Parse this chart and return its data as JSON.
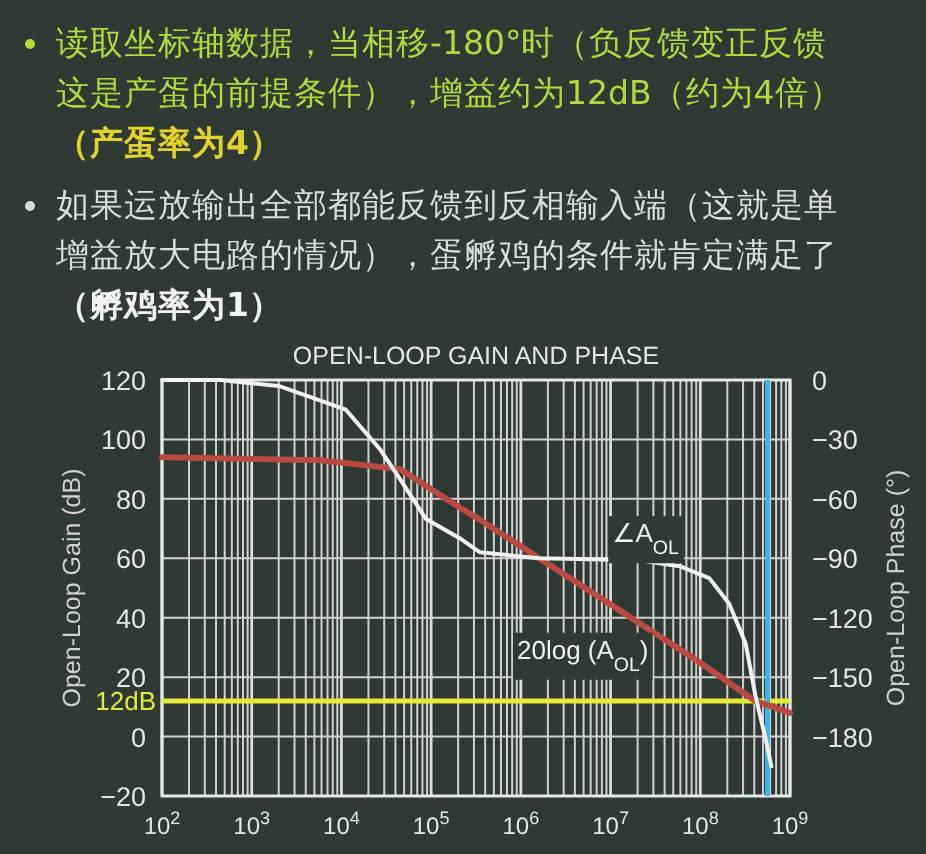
{
  "chart_data": {
    "type": "line",
    "title": "OPEN-LOOP GAIN AND PHASE",
    "ylabel": "Open-Loop Gain (dB)",
    "y2label": "Open-Loop Phase (°)",
    "log": "x",
    "xlim": [
      100,
      1000000000
    ],
    "xticks": [
      {
        "value": 100,
        "label": "10$^{2}$"
      },
      {
        "value": 1000,
        "label": "10$^{3}$"
      },
      {
        "value": 10000,
        "label": "10$^{4}$"
      },
      {
        "value": 100000,
        "label": "10$^{5}$"
      },
      {
        "value": 1000000,
        "label": "10$^{6}$"
      },
      {
        "value": 10000000,
        "label": "10$^{7}$"
      },
      {
        "value": 100000000,
        "label": "10$^{8}$"
      },
      {
        "value": 1000000000,
        "label": "10$^{9}$"
      }
    ],
    "ylim": [
      -20,
      120
    ],
    "yticks": [
      {
        "value": -20,
        "label": "−20"
      },
      0,
      20,
      40,
      60,
      80,
      100,
      120
    ],
    "y2lim": [
      -210,
      0
    ],
    "y2ticks": [
      0,
      {
        "value": -30,
        "label": "−30"
      },
      {
        "value": -60,
        "label": "−60"
      },
      {
        "value": -90,
        "label": "−90"
      },
      {
        "value": -120,
        "label": "−120"
      },
      {
        "value": -150,
        "label": "−150"
      },
      {
        "value": -180,
        "label": "−180"
      }
    ],
    "grid": true,
    "series": [
      {
        "color": "#b94a42",
        "x": [
          100,
          5800,
          45000,
          210000,
          350000,
          1600000,
          12600000,
          98000000,
          410000000,
          1000000000
        ],
        "values": [
          94,
          93,
          90,
          77,
          73,
          60,
          42.5,
          25,
          12,
          8
        ]
      },
      {
        "axis": "y2",
        "color": "#f2f2f2",
        "x": [
          100,
          450,
          2000,
          11200,
          27000,
          45000,
          87000,
          210000,
          350000,
          1600000,
          21000000,
          59000000,
          126000000,
          210000000,
          320000000,
          410000000,
          540000000,
          620000000
        ],
        "values": [
          0,
          0,
          -3,
          -15,
          -35,
          -50,
          -70,
          -80,
          -87,
          -90,
          -91,
          -94,
          -100,
          -113,
          -133,
          -159,
          -182,
          -195
        ]
      }
    ],
    "ref_lines": [
      {
        "axis": "y",
        "value": 12,
        "label": "12dB",
        "color": "#e6ea3a"
      },
      {
        "axis": "x",
        "value": 560000000,
        "color": "#3cb4ec"
      }
    ],
    "annotations": [
      "读取坐标轴数据，当相移-180°时（负反馈变正反馈",
      "这是产蛋的前提条件），增益约为12dB（约为4倍）",
      "（产蛋率为4）",
      "如果运放输出全部都能反馈到反相输入端（这就是单",
      "增益放大电路的情况），蛋孵鸡的条件就肯定满足了",
      "（孵鸡率为1）",
      "∠A$_{OL}$",
      "20log (A$_{OL}$)"
    ]
  }
}
